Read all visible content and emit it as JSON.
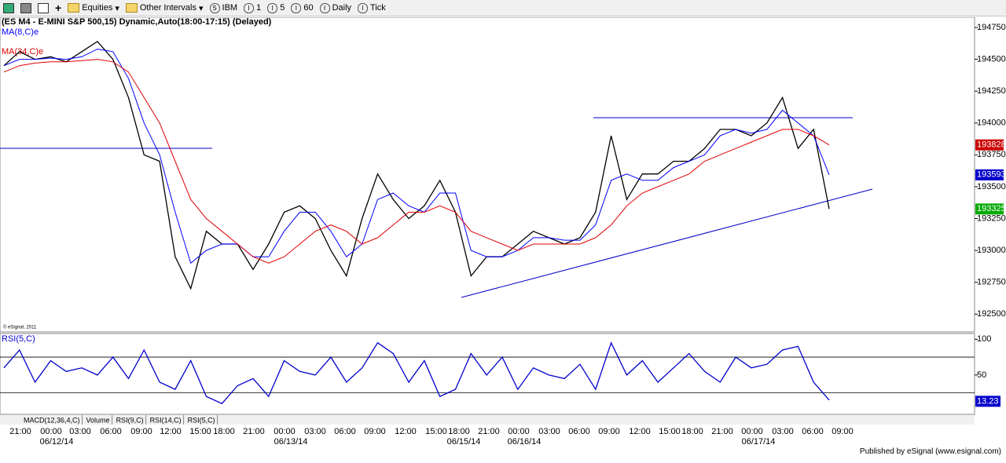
{
  "toolbar": {
    "items": [
      "Equities",
      "Other Intervals",
      "IBM",
      "1",
      "5",
      "60",
      "Daily",
      "Tick"
    ]
  },
  "chart_data": [
    {
      "type": "line",
      "title": "(ES M4 - E-MINI S&P 500,15) Dynamic,Auto(18:00-17:15) (Delayed)",
      "watermark": "© eSignal, 2011",
      "series": [
        {
          "color": "#000000",
          "values": [
            194450,
            194560,
            194500,
            194520,
            194480,
            194560,
            194640,
            194500,
            194200,
            193750,
            193700,
            192950,
            192700,
            193150,
            193050,
            193050,
            192850,
            193050,
            193300,
            193350,
            193250,
            193000,
            192800,
            193250,
            193600,
            193400,
            193250,
            193350,
            193550,
            193300,
            192800,
            192950,
            192950,
            193050,
            193150,
            193100,
            193050,
            193100,
            193300,
            193900,
            193400,
            193600,
            193600,
            193700,
            193700,
            193800,
            193950,
            193950,
            193900,
            194000,
            194200,
            193800,
            193950,
            193325
          ]
        },
        {
          "name": "MA(8,C)e",
          "color": "#0000ff",
          "values": [
            194450,
            194500,
            194500,
            194510,
            194500,
            194520,
            194580,
            194560,
            194350,
            194000,
            193750,
            193300,
            192900,
            193000,
            193050,
            193050,
            192950,
            192950,
            193150,
            193300,
            193300,
            193150,
            192950,
            193050,
            193400,
            193450,
            193350,
            193300,
            193450,
            193450,
            193000,
            192950,
            192950,
            193000,
            193100,
            193100,
            193080,
            193080,
            193200,
            193550,
            193600,
            193550,
            193550,
            193650,
            193700,
            193750,
            193900,
            193950,
            193920,
            193950,
            194100,
            194000,
            193900,
            193593
          ]
        },
        {
          "name": "MA(34,C)e",
          "color": "#e00000",
          "values": [
            194400,
            194450,
            194470,
            194480,
            194480,
            194490,
            194500,
            194480,
            194400,
            194200,
            194000,
            193700,
            193400,
            193250,
            193150,
            193050,
            192950,
            192900,
            192950,
            193050,
            193150,
            193200,
            193150,
            193050,
            193100,
            193200,
            193300,
            193300,
            193350,
            193300,
            193150,
            193100,
            193050,
            193000,
            193050,
            193050,
            193050,
            193050,
            193100,
            193200,
            193350,
            193450,
            193500,
            193550,
            193600,
            193700,
            193750,
            193800,
            193850,
            193900,
            193950,
            193950,
            193900,
            193828
          ]
        }
      ],
      "ylim": [
        192360,
        194830
      ],
      "yticks": [
        194750,
        194500,
        194250,
        194000,
        193750,
        193500,
        193250,
        193000,
        192750,
        192500
      ],
      "price_markers": [
        {
          "value": 193828,
          "color": "#cc0000"
        },
        {
          "value": 193593,
          "color": "#0000cc"
        },
        {
          "value": 193325,
          "color": "#00aa00"
        }
      ]
    },
    {
      "type": "line",
      "title": "RSI(5,C)",
      "series": [
        {
          "color": "#0000cc",
          "values": [
            60,
            85,
            40,
            70,
            55,
            60,
            50,
            75,
            45,
            85,
            40,
            30,
            70,
            20,
            10,
            35,
            45,
            20,
            70,
            55,
            50,
            75,
            40,
            60,
            95,
            80,
            40,
            70,
            20,
            30,
            80,
            50,
            75,
            30,
            60,
            50,
            45,
            65,
            30,
            95,
            50,
            70,
            40,
            60,
            80,
            55,
            40,
            75,
            60,
            65,
            85,
            90,
            40,
            15
          ]
        }
      ],
      "ylim": [
        -5,
        108
      ],
      "yticks": [
        100,
        50
      ],
      "reference_lines": [
        75,
        25
      ],
      "last_value": 13.23
    }
  ],
  "time_axis": {
    "labels": [
      "21:00",
      "00:00",
      "03:00",
      "06:00",
      "09:00",
      "12:00",
      "15:00",
      "18:00",
      "21:00",
      "00:00",
      "03:00",
      "06:00",
      "09:00",
      "12:00",
      "15:00",
      "18:00",
      "21:00",
      "00:00",
      "03:00",
      "06:00",
      "09:00",
      "12:00",
      "15:00",
      "18:00",
      "21:00",
      "00:00",
      "03:00",
      "06:00",
      "09:00"
    ],
    "dates": [
      "06/12/14",
      "06/13/14",
      "06/15/14",
      "06/16/14",
      "06/17/14"
    ]
  },
  "tabs": [
    "MACD(12,36,4,C)",
    "Volume",
    "RSI(9,C)",
    "RSI(14,C)",
    "RSI(5,C)"
  ],
  "footer": "Published by eSignal (www.esignal.com)"
}
